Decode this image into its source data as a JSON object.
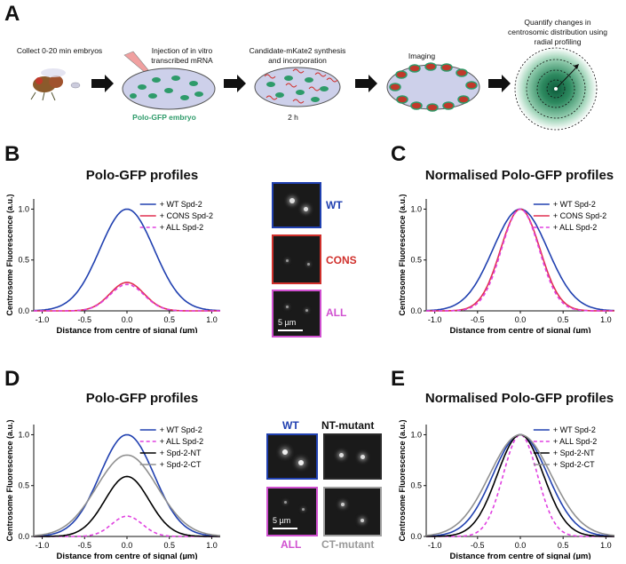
{
  "panel_labels": {
    "A": "A",
    "B": "B",
    "C": "C",
    "D": "D",
    "E": "E"
  },
  "panelA": {
    "steps": [
      "Collect 0-20 min embryos",
      "Injection of in vitro transcribed mRNA",
      "Candidate-mKate2 synthesis and incorporation",
      "Imaging",
      "Quantify changes in centrosomic distribution using radial profiling"
    ],
    "embryo_label": "Polo-GFP embryo",
    "time_label": "2 h",
    "colors": {
      "embryo_fill": "#cdd0ea",
      "gfp": "#2e9b6a",
      "mkate": "#d0302c",
      "label_green": "#2e9b6a"
    }
  },
  "micrographs_B": {
    "wt": "WT",
    "cons": "CONS",
    "all": "ALL",
    "scale": "5 µm"
  },
  "micrographs_D": {
    "wt": "WT",
    "nt": "NT-mutant",
    "all": "ALL",
    "ct": "CT-mutant",
    "scale": "5 µm"
  },
  "chart_data": [
    {
      "id": "B",
      "type": "line",
      "title": "Polo-GFP profiles",
      "xlabel": "Distance from centre of signal (µm)",
      "ylabel": "Centrosome Fluorescence (a.u.)",
      "xlim": [
        -1.1,
        1.1
      ],
      "ylim": [
        0,
        1.1
      ],
      "xticks": [
        "-1.0",
        "-0.5",
        "0.0",
        "0.5",
        "1.0"
      ],
      "yticks": [
        "0.0",
        "0.5",
        "1.0"
      ],
      "series": [
        {
          "name": "+ WT Spd-2",
          "color": "#2040b0",
          "dash": false,
          "amp": 1.0,
          "sigma": 0.32
        },
        {
          "name": "+ CONS Spd-2",
          "color": "#e03050",
          "dash": false,
          "amp": 0.28,
          "sigma": 0.2
        },
        {
          "name": "+ ALL Spd-2",
          "color": "#e040e0",
          "dash": true,
          "amp": 0.26,
          "sigma": 0.2
        }
      ]
    },
    {
      "id": "C",
      "type": "line",
      "title": "Normalised Polo-GFP profiles",
      "xlabel": "Distance from centre of signal (µm)",
      "ylabel": "Centrosome Fluorescence (a.u.)",
      "xlim": [
        -1.1,
        1.1
      ],
      "ylim": [
        0,
        1.1
      ],
      "xticks": [
        "-1.0",
        "-0.5",
        "0.0",
        "0.5",
        "1.0"
      ],
      "yticks": [
        "0.0",
        "0.5",
        "1.0"
      ],
      "series": [
        {
          "name": "+ WT Spd-2",
          "color": "#2040b0",
          "dash": false,
          "amp": 1.0,
          "sigma": 0.32
        },
        {
          "name": "+ CONS Spd-2",
          "color": "#e03050",
          "dash": false,
          "amp": 1.0,
          "sigma": 0.23
        },
        {
          "name": "+ ALL Spd-2",
          "color": "#e040e0",
          "dash": true,
          "amp": 1.0,
          "sigma": 0.22
        }
      ]
    },
    {
      "id": "D",
      "type": "line",
      "title": "Polo-GFP profiles",
      "xlabel": "Distance from centre of signal (µm)",
      "ylabel": "Centrosome Fluorescence (a.u.)",
      "xlim": [
        -1.1,
        1.1
      ],
      "ylim": [
        0,
        1.1
      ],
      "xticks": [
        "-1.0",
        "-0.5",
        "0.0",
        "0.5",
        "1.0"
      ],
      "yticks": [
        "0.0",
        "0.5",
        "1.0"
      ],
      "series": [
        {
          "name": "+ WT Spd-2",
          "color": "#2040b0",
          "dash": false,
          "amp": 1.0,
          "sigma": 0.32
        },
        {
          "name": "+ ALL Spd-2",
          "color": "#e040e0",
          "dash": true,
          "amp": 0.2,
          "sigma": 0.18
        },
        {
          "name": "+ Spd-2-NT",
          "color": "#000000",
          "dash": false,
          "amp": 0.59,
          "sigma": 0.26
        },
        {
          "name": "+ Spd-2-CT",
          "color": "#909090",
          "dash": false,
          "amp": 0.8,
          "sigma": 0.36
        }
      ]
    },
    {
      "id": "E",
      "type": "line",
      "title": "Normalised Polo-GFP profiles",
      "xlabel": "Distance from centre of signal (µm)",
      "ylabel": "Centrosome Fluorescence (a.u.)",
      "xlim": [
        -1.1,
        1.1
      ],
      "ylim": [
        0,
        1.1
      ],
      "xticks": [
        "-1.0",
        "-0.5",
        "0.0",
        "0.5",
        "1.0"
      ],
      "yticks": [
        "0.0",
        "0.5",
        "1.0"
      ],
      "series": [
        {
          "name": "+ WT Spd-2",
          "color": "#2040b0",
          "dash": false,
          "amp": 1.0,
          "sigma": 0.32
        },
        {
          "name": "+ ALL Spd-2",
          "color": "#e040e0",
          "dash": true,
          "amp": 1.0,
          "sigma": 0.2
        },
        {
          "name": "+ Spd-2-NT",
          "color": "#000000",
          "dash": false,
          "amp": 1.0,
          "sigma": 0.27
        },
        {
          "name": "+ Spd-2-CT",
          "color": "#909090",
          "dash": false,
          "amp": 1.0,
          "sigma": 0.36
        }
      ]
    }
  ]
}
